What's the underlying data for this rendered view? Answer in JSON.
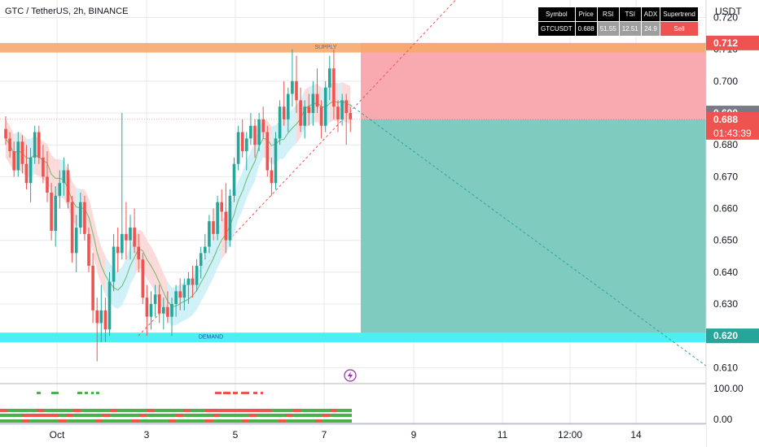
{
  "header": {
    "title": "GTC / TetherUS, 2h, BINANCE",
    "currency": "USDT"
  },
  "table": {
    "headers": [
      "Symbol",
      "Price",
      "RSI",
      "TSI",
      "ADX",
      "Supertrend"
    ],
    "row": [
      "GTCUSDT",
      "0.688",
      "51.55",
      "12.51",
      "24.9",
      "Sell"
    ]
  },
  "zones": {
    "supply_label": "SUPPLY",
    "demand_label": "DEMAND"
  },
  "price_tags": {
    "upper": "0.712",
    "mid": "0.690",
    "last": "0.688",
    "countdown": "01:43:39",
    "lower": "0.620"
  },
  "colors": {
    "bull": "#26a69a",
    "bear": "#ef5350",
    "supply": "#f7a96b",
    "demand": "#4df0f0",
    "stop_zone": "#f8a5ac",
    "target_zone": "#80cbbf",
    "ribbon_up": "#c8eef6",
    "ribbon_down": "#fcd3d3"
  },
  "chart_data": {
    "type": "candlestick",
    "title": "GTC / TetherUS, 2h, BINANCE",
    "y_ticks": [
      "0.720",
      "0.710",
      "0.700",
      "0.690",
      "0.680",
      "0.670",
      "0.660",
      "0.650",
      "0.640",
      "0.630",
      "0.620",
      "0.610"
    ],
    "x_ticks": [
      "Oct",
      "3",
      "5",
      "7",
      "9",
      "11",
      "12:00",
      "14"
    ],
    "oscillator_ticks": [
      "100.00",
      "0.00"
    ],
    "ylim": [
      0.6055,
      0.7255
    ],
    "levels": {
      "supply": [
        0.709,
        0.712
      ],
      "demand": [
        0.618,
        0.621
      ]
    },
    "position": {
      "type": "short",
      "entry": 0.688,
      "stop": 0.712,
      "target": 0.62
    },
    "last_price": 0.688,
    "ohlc": [
      [
        0.685,
        0.689,
        0.68,
        0.682
      ],
      [
        0.682,
        0.684,
        0.676,
        0.678
      ],
      [
        0.678,
        0.681,
        0.67,
        0.672
      ],
      [
        0.672,
        0.684,
        0.67,
        0.681
      ],
      [
        0.681,
        0.683,
        0.671,
        0.674
      ],
      [
        0.674,
        0.68,
        0.666,
        0.668
      ],
      [
        0.668,
        0.679,
        0.662,
        0.676
      ],
      [
        0.676,
        0.686,
        0.674,
        0.684
      ],
      [
        0.684,
        0.686,
        0.674,
        0.676
      ],
      [
        0.676,
        0.68,
        0.668,
        0.67
      ],
      [
        0.67,
        0.678,
        0.662,
        0.665
      ],
      [
        0.665,
        0.668,
        0.65,
        0.653
      ],
      [
        0.653,
        0.667,
        0.648,
        0.664
      ],
      [
        0.664,
        0.672,
        0.66,
        0.668
      ],
      [
        0.668,
        0.676,
        0.664,
        0.672
      ],
      [
        0.672,
        0.674,
        0.66,
        0.662
      ],
      [
        0.662,
        0.664,
        0.643,
        0.646
      ],
      [
        0.646,
        0.658,
        0.64,
        0.654
      ],
      [
        0.654,
        0.665,
        0.652,
        0.662
      ],
      [
        0.662,
        0.664,
        0.65,
        0.652
      ],
      [
        0.652,
        0.654,
        0.64,
        0.642
      ],
      [
        0.642,
        0.646,
        0.624,
        0.628
      ],
      [
        0.628,
        0.632,
        0.612,
        0.624
      ],
      [
        0.624,
        0.636,
        0.618,
        0.628
      ],
      [
        0.628,
        0.632,
        0.618,
        0.622
      ],
      [
        0.622,
        0.64,
        0.62,
        0.637
      ],
      [
        0.637,
        0.652,
        0.634,
        0.648
      ],
      [
        0.648,
        0.654,
        0.64,
        0.646
      ],
      [
        0.646,
        0.69,
        0.644,
        0.652
      ],
      [
        0.652,
        0.662,
        0.644,
        0.65
      ],
      [
        0.65,
        0.658,
        0.644,
        0.654
      ],
      [
        0.654,
        0.66,
        0.646,
        0.648
      ],
      [
        0.648,
        0.652,
        0.64,
        0.644
      ],
      [
        0.644,
        0.646,
        0.63,
        0.632
      ],
      [
        0.632,
        0.636,
        0.62,
        0.626
      ],
      [
        0.626,
        0.634,
        0.622,
        0.63
      ],
      [
        0.63,
        0.636,
        0.626,
        0.633
      ],
      [
        0.633,
        0.636,
        0.624,
        0.627
      ],
      [
        0.627,
        0.632,
        0.622,
        0.629
      ],
      [
        0.629,
        0.634,
        0.624,
        0.626
      ],
      [
        0.626,
        0.632,
        0.62,
        0.63
      ],
      [
        0.63,
        0.636,
        0.626,
        0.634
      ],
      [
        0.634,
        0.638,
        0.628,
        0.632
      ],
      [
        0.632,
        0.638,
        0.628,
        0.636
      ],
      [
        0.636,
        0.64,
        0.63,
        0.638
      ],
      [
        0.638,
        0.642,
        0.632,
        0.636
      ],
      [
        0.636,
        0.644,
        0.634,
        0.642
      ],
      [
        0.642,
        0.648,
        0.638,
        0.646
      ],
      [
        0.646,
        0.652,
        0.644,
        0.648
      ],
      [
        0.648,
        0.658,
        0.646,
        0.656
      ],
      [
        0.656,
        0.66,
        0.65,
        0.652
      ],
      [
        0.652,
        0.664,
        0.65,
        0.662
      ],
      [
        0.662,
        0.666,
        0.656,
        0.659
      ],
      [
        0.659,
        0.668,
        0.646,
        0.65
      ],
      [
        0.65,
        0.666,
        0.648,
        0.664
      ],
      [
        0.664,
        0.676,
        0.662,
        0.674
      ],
      [
        0.674,
        0.686,
        0.672,
        0.684
      ],
      [
        0.684,
        0.688,
        0.676,
        0.678
      ],
      [
        0.678,
        0.684,
        0.672,
        0.682
      ],
      [
        0.682,
        0.69,
        0.68,
        0.686
      ],
      [
        0.686,
        0.688,
        0.676,
        0.68
      ],
      [
        0.68,
        0.69,
        0.678,
        0.688
      ],
      [
        0.688,
        0.692,
        0.682,
        0.684
      ],
      [
        0.684,
        0.686,
        0.67,
        0.672
      ],
      [
        0.672,
        0.676,
        0.664,
        0.668
      ],
      [
        0.668,
        0.684,
        0.666,
        0.682
      ],
      [
        0.682,
        0.694,
        0.68,
        0.692
      ],
      [
        0.692,
        0.7,
        0.686,
        0.688
      ],
      [
        0.688,
        0.698,
        0.684,
        0.696
      ],
      [
        0.696,
        0.71,
        0.692,
        0.7
      ],
      [
        0.7,
        0.708,
        0.69,
        0.694
      ],
      [
        0.694,
        0.698,
        0.684,
        0.686
      ],
      [
        0.686,
        0.694,
        0.682,
        0.692
      ],
      [
        0.692,
        0.696,
        0.686,
        0.69
      ],
      [
        0.69,
        0.7,
        0.686,
        0.696
      ],
      [
        0.696,
        0.704,
        0.69,
        0.692
      ],
      [
        0.692,
        0.694,
        0.682,
        0.686
      ],
      [
        0.686,
        0.7,
        0.684,
        0.698
      ],
      [
        0.698,
        0.708,
        0.694,
        0.704
      ],
      [
        0.704,
        0.71,
        0.688,
        0.692
      ],
      [
        0.692,
        0.694,
        0.684,
        0.688
      ],
      [
        0.688,
        0.696,
        0.686,
        0.694
      ],
      [
        0.694,
        0.696,
        0.68,
        0.69
      ],
      [
        0.69,
        0.692,
        0.684,
        0.688
      ]
    ]
  }
}
